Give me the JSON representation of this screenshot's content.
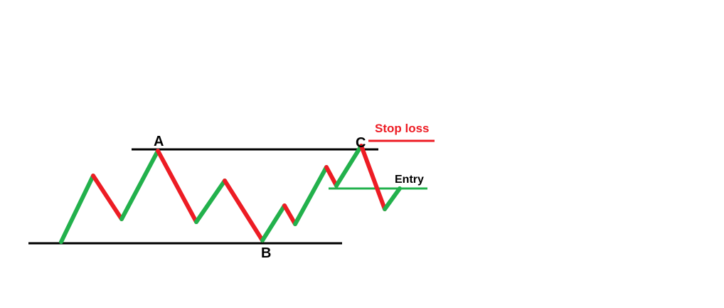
{
  "colors": {
    "up": "#22b14c",
    "down": "#ed1c24",
    "level": "#000000",
    "stop": "#ed1c24",
    "entry": "#22b14c"
  },
  "points": {
    "a": "A",
    "b": "B",
    "c": "C"
  },
  "annotations": {
    "stop_loss": "Stop loss",
    "entry": "Entry"
  },
  "price_path": [
    {
      "dir": "up"
    },
    {
      "dir": "down"
    },
    {
      "dir": "up"
    },
    {
      "dir": "down"
    },
    {
      "dir": "up"
    },
    {
      "dir": "down"
    },
    {
      "dir": "up"
    },
    {
      "dir": "down"
    },
    {
      "dir": "up"
    },
    {
      "dir": "down"
    },
    {
      "dir": "up"
    },
    {
      "dir": "down"
    },
    {
      "dir": "up"
    }
  ]
}
